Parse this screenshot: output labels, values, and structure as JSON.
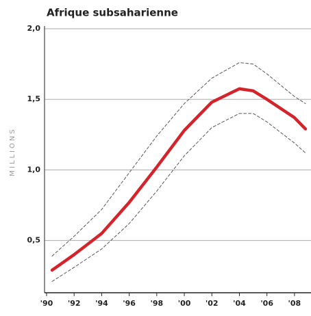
{
  "chart_data": {
    "type": "line",
    "title": "Afrique subsaharienne",
    "y_label": "MILLIONS",
    "x": [
      1990.4,
      1992,
      1994,
      1996,
      1998,
      2000,
      2002,
      2004,
      2005,
      2006,
      2008,
      2008.8
    ],
    "series": [
      {
        "color": "#555555",
        "dashed": true,
        "values": [
          0.39,
          0.53,
          0.72,
          0.98,
          1.24,
          1.47,
          1.65,
          1.76,
          1.75,
          1.68,
          1.52,
          1.47
        ]
      },
      {
        "color": "#555555",
        "dashed": true,
        "values": [
          0.21,
          0.31,
          0.44,
          0.62,
          0.85,
          1.1,
          1.3,
          1.4,
          1.4,
          1.34,
          1.19,
          1.12
        ]
      },
      {
        "color": "#d3242b",
        "dashed": false,
        "values": [
          0.29,
          0.4,
          0.55,
          0.77,
          1.02,
          1.28,
          1.48,
          1.575,
          1.56,
          1.5,
          1.37,
          1.29
        ]
      }
    ],
    "xlim": [
      1989.85,
      2009.2
    ],
    "xticks": [
      {
        "value": 1990,
        "label": "'90"
      },
      {
        "value": 1992,
        "label": "'92"
      },
      {
        "value": 1994,
        "label": "'94"
      },
      {
        "value": 1996,
        "label": "'96"
      },
      {
        "value": 1998,
        "label": "'98"
      },
      {
        "value": 2000,
        "label": "'00"
      },
      {
        "value": 2002,
        "label": "'02"
      },
      {
        "value": 2004,
        "label": "'04"
      },
      {
        "value": 2006,
        "label": "'06"
      },
      {
        "value": 2008,
        "label": "'08"
      }
    ],
    "ylim": [
      0.13,
      2.0
    ],
    "yticks": [
      {
        "value": 0.5,
        "label": "0,5"
      },
      {
        "value": 1,
        "label": "1,0"
      },
      {
        "value": 1.5,
        "label": "1,5"
      },
      {
        "value": 2,
        "label": "2,0"
      }
    ],
    "grid": true
  }
}
